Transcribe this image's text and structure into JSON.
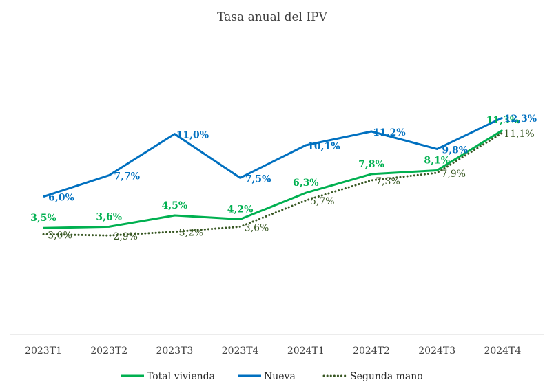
{
  "chart_data": {
    "type": "line",
    "title": "Tasa anual del IPV",
    "categories": [
      "2023T1",
      "2023T2",
      "2023T3",
      "2023T4",
      "2024T1",
      "2024T2",
      "2024T3",
      "2024T4"
    ],
    "xlabel": "",
    "ylabel": "",
    "ylim": [
      -5,
      14
    ],
    "grid": false,
    "legend_position": "bottom",
    "series": [
      {
        "name": "Total vivienda",
        "values": [
          3.5,
          3.6,
          4.5,
          4.2,
          6.3,
          7.8,
          8.1,
          11.3
        ],
        "labels": [
          "3,5%",
          "3,6%",
          "4,5%",
          "4,2%",
          "6,3%",
          "7,8%",
          "8,1%",
          "11,3%"
        ],
        "color": "#00B050",
        "style": "solid"
      },
      {
        "name": "Nueva",
        "values": [
          6.0,
          7.7,
          11.0,
          7.5,
          10.1,
          11.2,
          9.8,
          12.3
        ],
        "labels": [
          "6,0%",
          "7,7%",
          "11,0%",
          "7,5%",
          "10,1%",
          "11,2%",
          "9,8%",
          "12,3%"
        ],
        "color": "#0070C0",
        "style": "solid"
      },
      {
        "name": "Segunda mano",
        "values": [
          3.0,
          2.9,
          3.2,
          3.6,
          5.7,
          7.3,
          7.9,
          11.1
        ],
        "labels": [
          "3,0%",
          "2,9%",
          "3,2%",
          "3,6%",
          "5,7%",
          "7,3%",
          "7,9%",
          "11,1%"
        ],
        "color": "#385723",
        "style": "dotted"
      }
    ]
  }
}
